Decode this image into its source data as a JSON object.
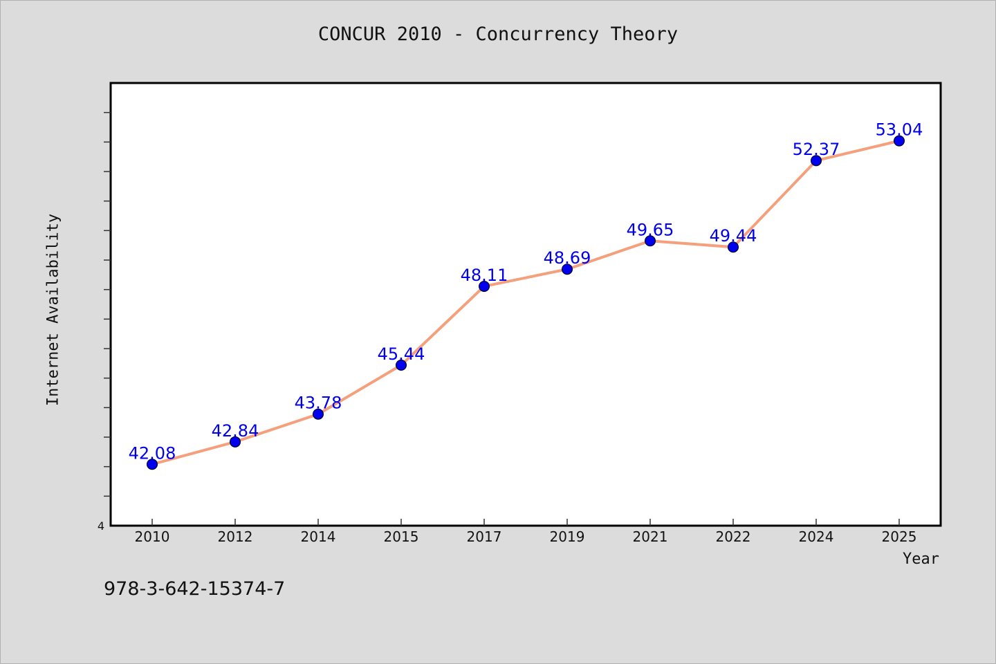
{
  "chart_data": {
    "type": "line",
    "title": "CONCUR 2010 - Concurrency Theory",
    "xlabel": "Year",
    "ylabel": "Internet Availability",
    "categories": [
      "2010",
      "2012",
      "2014",
      "2015",
      "2017",
      "2019",
      "2021",
      "2022",
      "2024",
      "2025"
    ],
    "series": [
      {
        "values": [
          42.08,
          42.84,
          43.78,
          45.44,
          48.11,
          48.69,
          49.65,
          49.44,
          52.37,
          53.04
        ]
      }
    ],
    "data_labels": [
      "42.08",
      "42.84",
      "43.78",
      "45.44",
      "48.11",
      "48.69",
      "49.65",
      "49.44",
      "52.37",
      "53.04"
    ],
    "ylim": [
      40.0,
      55.0
    ],
    "ytick_labels": [
      "4"
    ],
    "grid": false,
    "legend": "none",
    "colors": {
      "line": "#f4a07c",
      "marker": "#0000ee",
      "label": "#0000ee"
    }
  },
  "footnote": "978-3-642-15374-7"
}
